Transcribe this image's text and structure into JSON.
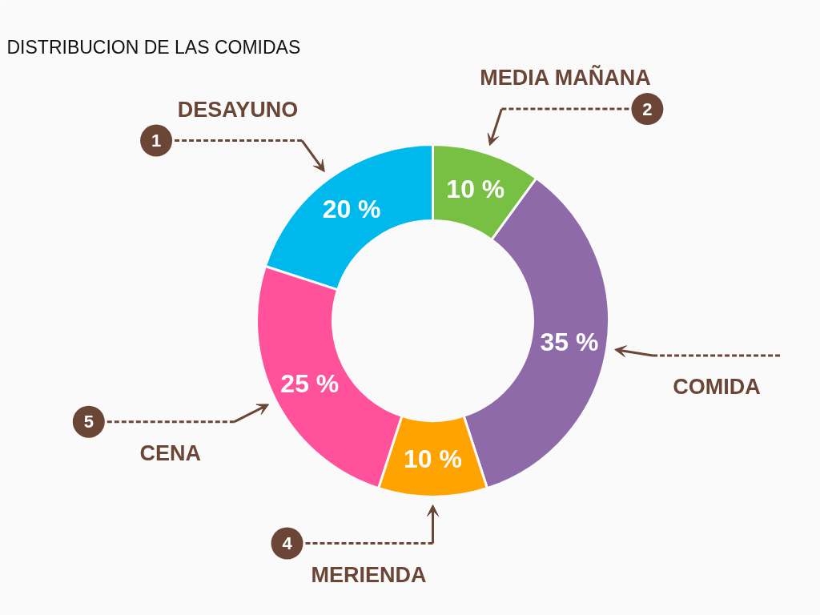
{
  "chart_data": {
    "type": "donut",
    "title": "DISTRIBUCION DE LAS COMIDAS",
    "categories": [
      "DESAYUNO",
      "MEDIA MAÑANA",
      "COMIDA",
      "MERIENDA",
      "CENA"
    ],
    "values": [
      20,
      10,
      35,
      10,
      25
    ],
    "colors": [
      "#00b9ec",
      "#77c043",
      "#8f6aa9",
      "#ffa300",
      "#ff529a"
    ],
    "value_labels": [
      "20 %",
      "10 %",
      "35 %",
      "10 %",
      "25 %"
    ],
    "annotations": [
      {
        "text": "1",
        "x": "DESAYUNO"
      },
      {
        "text": "2",
        "x": "MEDIA MAÑANA"
      },
      {
        "text": "4",
        "x": "MERIENDA"
      },
      {
        "text": "5",
        "x": "CENA"
      }
    ]
  }
}
